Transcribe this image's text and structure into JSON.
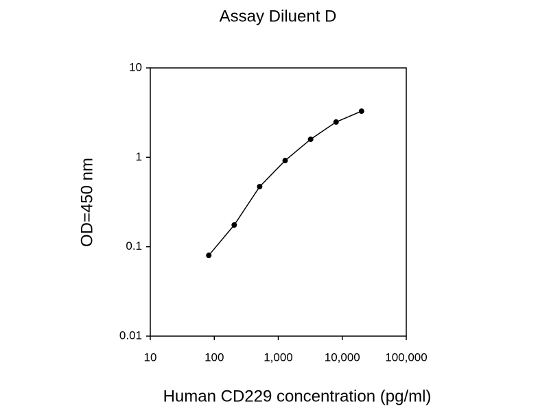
{
  "chart_data": {
    "type": "line",
    "title": "Assay Diluent D",
    "x_label": "Human CD229 concentration (pg/ml)",
    "y_label": "OD=450 nm",
    "x": [
      82,
      205,
      512,
      1280,
      3200,
      8000,
      20000
    ],
    "values": [
      0.08,
      0.175,
      0.47,
      0.92,
      1.59,
      2.48,
      3.28
    ],
    "color": "#000000",
    "x_log": true,
    "y_log": true,
    "xlim": [
      10,
      100000
    ],
    "xticks": [
      10,
      100,
      {
        "value": 1000,
        "label": "1,000"
      },
      {
        "value": 10000,
        "label": "10,000"
      },
      {
        "value": 100000,
        "label": "100,000"
      }
    ],
    "ylim": [
      0.01,
      10
    ],
    "yticks": [
      0.01,
      0.1,
      1,
      10
    ],
    "grid": false
  }
}
